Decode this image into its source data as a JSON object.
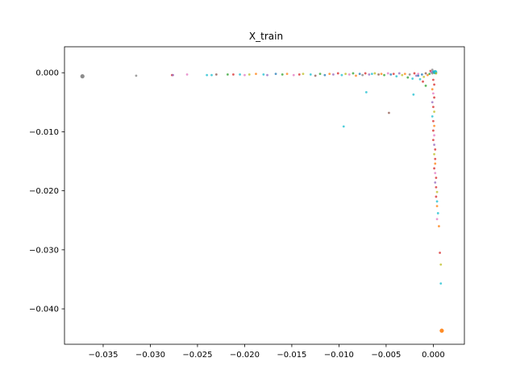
{
  "chart_data": {
    "type": "scatter",
    "title": "X_train",
    "xlabel": "",
    "ylabel": "",
    "xlim": [
      -0.0391,
      0.0033
    ],
    "ylim": [
      -0.046,
      0.0044
    ],
    "xticks": [
      -0.035,
      -0.03,
      -0.025,
      -0.02,
      -0.015,
      -0.01,
      -0.005,
      0.0
    ],
    "xtick_labels": [
      "−0.035",
      "−0.030",
      "−0.025",
      "−0.020",
      "−0.015",
      "−0.010",
      "−0.005",
      "0.000"
    ],
    "yticks": [
      0.0,
      -0.01,
      -0.02,
      -0.03,
      -0.04
    ],
    "ytick_labels": [
      "0.000",
      "−0.010",
      "−0.020",
      "−0.030",
      "−0.040"
    ],
    "grid": false,
    "legend": "none",
    "palette": [
      "#1f77b4",
      "#ff7f0e",
      "#2ca02c",
      "#d62728",
      "#9467bd",
      "#8c564b",
      "#e377c2",
      "#7f7f7f",
      "#bcbd22",
      "#17becf"
    ],
    "points": [
      {
        "x": -0.0372,
        "y": -0.0006,
        "c": "#7f7f7f",
        "big": true
      },
      {
        "x": -0.0315,
        "y": -0.0005,
        "c": "#7f7f7f"
      },
      {
        "x": -0.0277,
        "y": -0.0004,
        "c": "#d62728"
      },
      {
        "x": -0.0276,
        "y": -0.0004,
        "c": "#9467bd"
      },
      {
        "x": -0.0261,
        "y": -0.0003,
        "c": "#e377c2"
      },
      {
        "x": -0.024,
        "y": -0.0004,
        "c": "#17becf"
      },
      {
        "x": -0.0235,
        "y": -0.0004,
        "c": "#17becf"
      },
      {
        "x": -0.023,
        "y": -0.0003,
        "c": "#8c564b"
      },
      {
        "x": -0.0218,
        "y": -0.0003,
        "c": "#2ca02c"
      },
      {
        "x": -0.0212,
        "y": -0.0003,
        "c": "#d62728"
      },
      {
        "x": -0.0205,
        "y": -0.0003,
        "c": "#17becf"
      },
      {
        "x": -0.02,
        "y": -0.0004,
        "c": "#e377c2"
      },
      {
        "x": -0.0195,
        "y": -0.0003,
        "c": "#bcbd22"
      },
      {
        "x": -0.0188,
        "y": -0.0002,
        "c": "#ff7f0e"
      },
      {
        "x": -0.018,
        "y": -0.0003,
        "c": "#17becf"
      },
      {
        "x": -0.0176,
        "y": -0.0004,
        "c": "#9467bd"
      },
      {
        "x": -0.0167,
        "y": -0.0002,
        "c": "#1f77b4"
      },
      {
        "x": -0.016,
        "y": -0.0003,
        "c": "#2ca02c"
      },
      {
        "x": -0.0155,
        "y": -0.0002,
        "c": "#ff7f0e"
      },
      {
        "x": -0.0148,
        "y": -0.0004,
        "c": "#e377c2"
      },
      {
        "x": -0.0142,
        "y": -0.0003,
        "c": "#d62728"
      },
      {
        "x": -0.0138,
        "y": -0.0002,
        "c": "#bcbd22"
      },
      {
        "x": -0.013,
        "y": -0.0003,
        "c": "#17becf"
      },
      {
        "x": -0.0125,
        "y": -0.0005,
        "c": "#8c564b"
      },
      {
        "x": -0.012,
        "y": -0.0002,
        "c": "#2ca02c"
      },
      {
        "x": -0.0115,
        "y": -0.0004,
        "c": "#1f77b4"
      },
      {
        "x": -0.011,
        "y": -0.0002,
        "c": "#ff7f0e"
      },
      {
        "x": -0.0106,
        "y": -0.0003,
        "c": "#9467bd"
      },
      {
        "x": -0.0101,
        "y": -0.0001,
        "c": "#d62728"
      },
      {
        "x": -0.0097,
        "y": -0.0004,
        "c": "#17becf"
      },
      {
        "x": -0.0093,
        "y": -0.0002,
        "c": "#bcbd22"
      },
      {
        "x": -0.0089,
        "y": -0.0003,
        "c": "#e377c2"
      },
      {
        "x": -0.0085,
        "y": -0.0001,
        "c": "#2ca02c"
      },
      {
        "x": -0.0082,
        "y": -0.0005,
        "c": "#ff7f0e"
      },
      {
        "x": -0.0078,
        "y": -0.0002,
        "c": "#1f77b4"
      },
      {
        "x": -0.0075,
        "y": -0.0004,
        "c": "#7f7f7f"
      },
      {
        "x": -0.0072,
        "y": -0.0001,
        "c": "#d62728"
      },
      {
        "x": -0.0068,
        "y": -0.0003,
        "c": "#9467bd"
      },
      {
        "x": -0.0065,
        "y": -0.0002,
        "c": "#17becf"
      },
      {
        "x": -0.0062,
        "y": -0.0001,
        "c": "#bcbd22"
      },
      {
        "x": -0.0058,
        "y": -0.0003,
        "c": "#8c564b"
      },
      {
        "x": -0.0055,
        "y": -0.0002,
        "c": "#ff7f0e"
      },
      {
        "x": -0.0052,
        "y": -0.0004,
        "c": "#2ca02c"
      },
      {
        "x": -0.0048,
        "y": -0.0001,
        "c": "#e377c2"
      },
      {
        "x": -0.0045,
        "y": -0.0003,
        "c": "#1f77b4"
      },
      {
        "x": -0.0042,
        "y": -0.0002,
        "c": "#d62728"
      },
      {
        "x": -0.0039,
        "y": -0.0006,
        "c": "#17becf"
      },
      {
        "x": -0.0036,
        "y": -0.0001,
        "c": "#9467bd"
      },
      {
        "x": -0.0033,
        "y": -0.0004,
        "c": "#bcbd22"
      },
      {
        "x": -0.003,
        "y": -0.0002,
        "c": "#ff7f0e"
      },
      {
        "x": -0.0027,
        "y": -0.0008,
        "c": "#2ca02c"
      },
      {
        "x": -0.0025,
        "y": -0.0003,
        "c": "#7f7f7f"
      },
      {
        "x": -0.0022,
        "y": -0.001,
        "c": "#17becf"
      },
      {
        "x": -0.002,
        "y": -0.0001,
        "c": "#d62728"
      },
      {
        "x": -0.0018,
        "y": -0.0005,
        "c": "#9467bd"
      },
      {
        "x": -0.0016,
        "y": -0.0002,
        "c": "#e377c2"
      },
      {
        "x": -0.0014,
        "y": -0.0011,
        "c": "#17becf"
      },
      {
        "x": -0.0012,
        "y": -0.0003,
        "c": "#1f77b4"
      },
      {
        "x": -0.001,
        "y": -0.0007,
        "c": "#bcbd22"
      },
      {
        "x": -0.0008,
        "y": -0.0001,
        "c": "#8c564b"
      },
      {
        "x": -0.0006,
        "y": -0.0004,
        "c": "#ff7f0e"
      },
      {
        "x": -0.0004,
        "y": -0.0002,
        "c": "#2ca02c"
      },
      {
        "x": -0.0003,
        "y": 0.0003,
        "c": "#d62728"
      },
      {
        "x": -0.0002,
        "y": 0.0001,
        "c": "#9467bd"
      },
      {
        "x": -0.0001,
        "y": -0.0001,
        "c": "#7f7f7f"
      },
      {
        "x": 0.0,
        "y": 0.0002,
        "c": "#1f77b4"
      },
      {
        "x": 0.0001,
        "y": 0.0,
        "c": "#2ca02c"
      },
      {
        "x": 0.0002,
        "y": 0.0001,
        "c": "#17becf",
        "big": true
      },
      {
        "x": 0.0003,
        "y": -0.0001,
        "c": "#bcbd22"
      },
      {
        "x": -0.0001,
        "y": 0.0005,
        "c": "#7f7f7f"
      },
      {
        "x": -0.0021,
        "y": -0.0037,
        "c": "#17becf"
      },
      {
        "x": -0.0071,
        "y": -0.0033,
        "c": "#17becf"
      },
      {
        "x": -0.0095,
        "y": -0.0091,
        "c": "#17becf"
      },
      {
        "x": -0.0047,
        "y": -0.0068,
        "c": "#8c564b"
      },
      {
        "x": -0.0008,
        "y": -0.0022,
        "c": "#2ca02c"
      },
      {
        "x": -0.0011,
        "y": -0.0015,
        "c": "#d62728"
      },
      {
        "x": -0.0016,
        "y": -0.0005,
        "c": "#1f77b4"
      },
      {
        "x": 0.0,
        "y": -0.0012,
        "c": "#d62728"
      },
      {
        "x": 0.0001,
        "y": -0.002,
        "c": "#d62728"
      },
      {
        "x": -0.0001,
        "y": -0.0028,
        "c": "#ff7f0e"
      },
      {
        "x": 0.0,
        "y": -0.0035,
        "c": "#e377c2"
      },
      {
        "x": 0.0001,
        "y": -0.0042,
        "c": "#d62728"
      },
      {
        "x": -0.0001,
        "y": -0.005,
        "c": "#9467bd"
      },
      {
        "x": 0.0,
        "y": -0.0058,
        "c": "#d62728"
      },
      {
        "x": 0.0001,
        "y": -0.0066,
        "c": "#bcbd22"
      },
      {
        "x": -0.0001,
        "y": -0.0074,
        "c": "#17becf"
      },
      {
        "x": 0.0,
        "y": -0.0082,
        "c": "#d62728"
      },
      {
        "x": 0.0001,
        "y": -0.009,
        "c": "#ff7f0e"
      },
      {
        "x": 0.0,
        "y": -0.0098,
        "c": "#d62728"
      },
      {
        "x": 0.0001,
        "y": -0.0106,
        "c": "#e377c2"
      },
      {
        "x": 0.0,
        "y": -0.0114,
        "c": "#d62728"
      },
      {
        "x": 0.0001,
        "y": -0.0122,
        "c": "#9467bd"
      },
      {
        "x": 0.0002,
        "y": -0.013,
        "c": "#d62728"
      },
      {
        "x": 0.0001,
        "y": -0.0138,
        "c": "#bcbd22"
      },
      {
        "x": 0.0002,
        "y": -0.0146,
        "c": "#d62728"
      },
      {
        "x": 0.0002,
        "y": -0.0154,
        "c": "#ff7f0e"
      },
      {
        "x": 0.0001,
        "y": -0.0162,
        "c": "#d62728"
      },
      {
        "x": 0.0002,
        "y": -0.017,
        "c": "#e377c2"
      },
      {
        "x": 0.0003,
        "y": -0.0178,
        "c": "#d62728"
      },
      {
        "x": 0.0002,
        "y": -0.0186,
        "c": "#9467bd"
      },
      {
        "x": 0.0003,
        "y": -0.0194,
        "c": "#d62728"
      },
      {
        "x": 0.0004,
        "y": -0.0202,
        "c": "#bcbd22"
      },
      {
        "x": 0.0003,
        "y": -0.021,
        "c": "#d62728"
      },
      {
        "x": 0.0004,
        "y": -0.0218,
        "c": "#17becf"
      },
      {
        "x": 0.0004,
        "y": -0.0226,
        "c": "#ff7f0e"
      },
      {
        "x": 0.0005,
        "y": -0.0238,
        "c": "#17becf"
      },
      {
        "x": 0.0004,
        "y": -0.0248,
        "c": "#e377c2"
      },
      {
        "x": 0.0006,
        "y": -0.026,
        "c": "#ff7f0e"
      },
      {
        "x": 0.0007,
        "y": -0.0305,
        "c": "#d62728"
      },
      {
        "x": 0.0008,
        "y": -0.0325,
        "c": "#bcbd22"
      },
      {
        "x": 0.0008,
        "y": -0.0357,
        "c": "#17becf"
      },
      {
        "x": 0.0009,
        "y": -0.0437,
        "c": "#ff7f0e",
        "big": true
      }
    ]
  }
}
